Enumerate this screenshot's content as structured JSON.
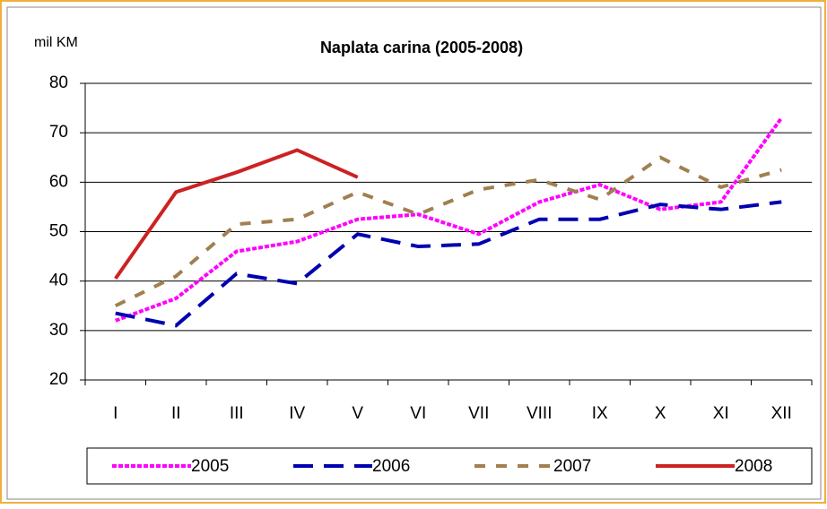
{
  "chart_data": {
    "type": "line",
    "title": "Naplata carina (2005-2008)",
    "y_label": "mil KM",
    "categories": [
      "I",
      "II",
      "III",
      "IV",
      "V",
      "VI",
      "VII",
      "VIII",
      "IX",
      "X",
      "XI",
      "XII"
    ],
    "series": [
      {
        "name": "2005",
        "color": "#ff00ff",
        "values": [
          32,
          36.5,
          46,
          48,
          52.5,
          53.5,
          49.5,
          56,
          59.5,
          54.5,
          56,
          73
        ]
      },
      {
        "name": "2006",
        "color": "#0000b0",
        "values": [
          33.5,
          31,
          41.5,
          39.5,
          49.5,
          47,
          47.5,
          52.5,
          52.5,
          55.5,
          54.5,
          56
        ]
      },
      {
        "name": "2007",
        "color": "#a08050",
        "values": [
          35,
          41,
          51.5,
          52.5,
          58,
          53.5,
          58.5,
          60.5,
          56.5,
          65,
          59,
          62.5
        ]
      },
      {
        "name": "2008",
        "color": "#cc2222",
        "values": [
          40.5,
          58,
          62,
          66.5,
          61,
          null,
          null,
          null,
          null,
          null,
          null,
          null
        ]
      }
    ],
    "ylim": [
      20,
      80
    ],
    "yticks": [
      20,
      30,
      40,
      50,
      60,
      70,
      80
    ],
    "grid": true,
    "legend": "bottom"
  }
}
